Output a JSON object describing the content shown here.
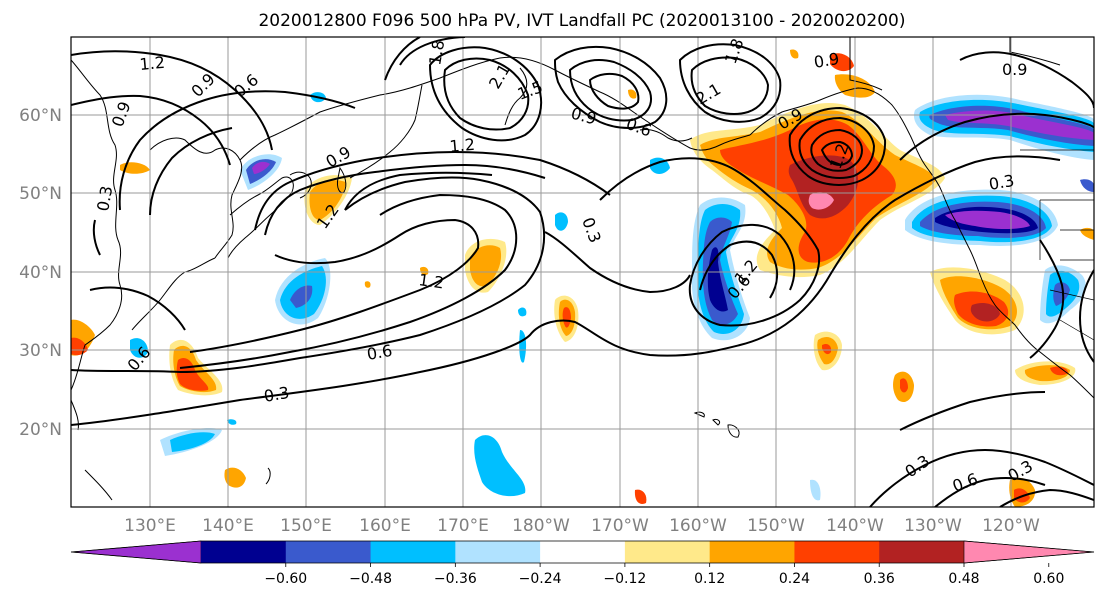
{
  "title": "2020012800 F096 500 hPa PV, IVT Landfall PC (2020013100 - 2020020200)",
  "map": {
    "lat_labels": [
      "60°N",
      "50°N",
      "40°N",
      "30°N",
      "20°N"
    ],
    "lon_labels": [
      "130°E",
      "140°E",
      "150°E",
      "160°E",
      "170°E",
      "180°W",
      "170°W",
      "160°W",
      "150°W",
      "140°W",
      "130°W",
      "120°W"
    ],
    "contour_labels": [
      "1.2",
      "0.9",
      "0.6",
      "0.9",
      "1.2",
      "1.8",
      "1.5",
      "2.1",
      "0.9",
      "0.6",
      "2.1",
      "1.8",
      "0.9",
      "0.9",
      "1.2",
      "0.3",
      "1.2",
      "0.6",
      "0.3",
      "0.6",
      "0.3",
      "0.9",
      "0.3",
      "0.6",
      "0.3",
      "1.2",
      "0.6",
      "0.3",
      "0.9",
      "1.2"
    ],
    "shading_colors": {
      "purple": "#9b30d0",
      "navy": "#000090",
      "blue": "#3a5acd",
      "cyan": "#00bfff",
      "lightblue": "#b0e2ff",
      "lightyellow": "#ffe98a",
      "orange": "#ffa500",
      "orangered": "#ff4000",
      "darkred": "#b22222",
      "pink": "#ff88b0"
    }
  },
  "colorbar": {
    "colors": [
      "#9b30d0",
      "#000090",
      "#3a5acd",
      "#00bfff",
      "#b0e2ff",
      "#ffffff",
      "#ffe98a",
      "#ffa500",
      "#ff4000",
      "#b22222",
      "#ff88b0"
    ],
    "tick_labels": [
      "−0.60",
      "−0.48",
      "−0.36",
      "−0.24",
      "−0.12",
      "0.12",
      "0.24",
      "0.36",
      "0.48",
      "0.60"
    ]
  }
}
